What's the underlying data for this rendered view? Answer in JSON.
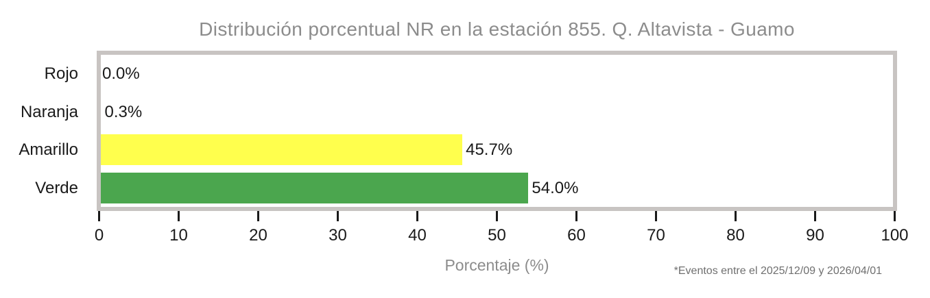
{
  "chart_data": {
    "type": "bar",
    "orientation": "horizontal",
    "title": "Distribución porcentual NR en la estación 855. Q. Altavista - Guamo",
    "categories": [
      "Rojo",
      "Naranja",
      "Amarillo",
      "Verde"
    ],
    "values": [
      0.0,
      0.3,
      45.7,
      54.0
    ],
    "value_labels": [
      "0.0%",
      "0.3%",
      "45.7%",
      "54.0%"
    ],
    "bar_colors": [
      "#e03131",
      "#ff9f1c",
      "#ffff4d",
      "#4ba64e"
    ],
    "xlabel": "Porcentaje (%)",
    "xlim": [
      0,
      100
    ],
    "xticks": [
      0,
      10,
      20,
      30,
      40,
      50,
      60,
      70,
      80,
      90,
      100
    ],
    "grid": false,
    "legend": "none",
    "footnote": "*Eventos entre el 2025/12/09 y 2026/04/01",
    "colors": {
      "title_text": "#8c8c8c",
      "axis_text": "#1a1a1a",
      "xlabel_text": "#8c8c8c",
      "footnote_text": "#6f6f6f",
      "plot_frame": "#c8c4c2",
      "background": "#ffffff"
    }
  }
}
